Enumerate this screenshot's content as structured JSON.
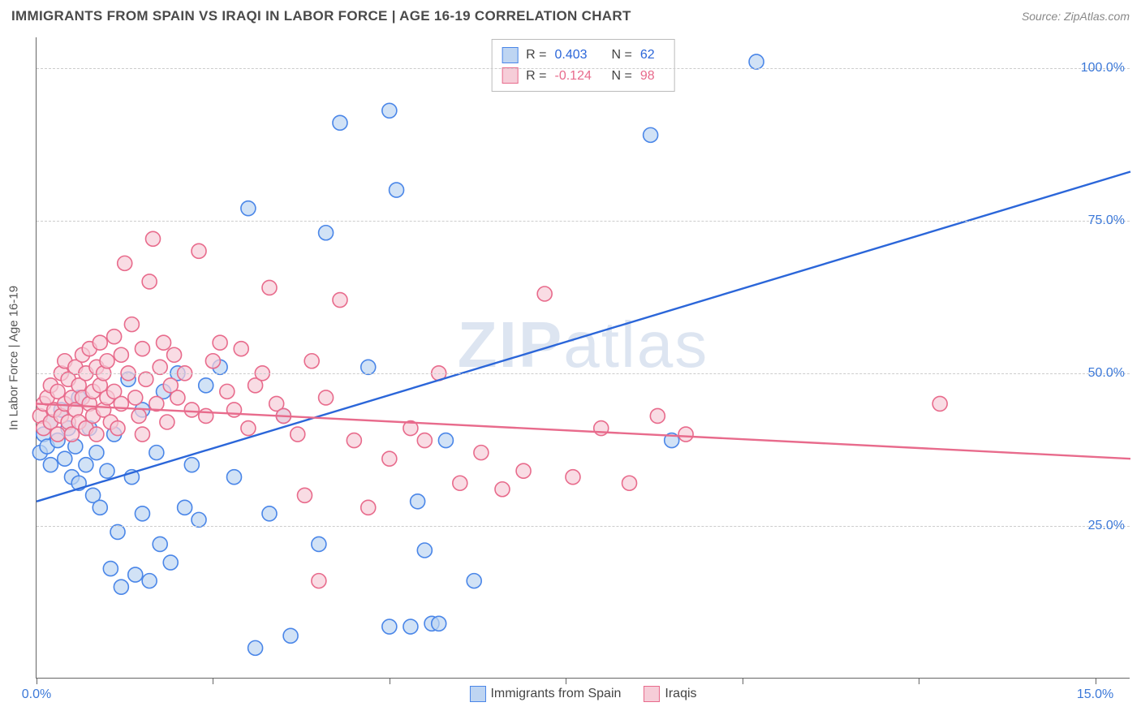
{
  "header": {
    "title": "IMMIGRANTS FROM SPAIN VS IRAQI IN LABOR FORCE | AGE 16-19 CORRELATION CHART",
    "source": "Source: ZipAtlas.com"
  },
  "watermark": {
    "bold": "ZIP",
    "rest": "atlas"
  },
  "chart": {
    "type": "scatter",
    "ylabel": "In Labor Force | Age 16-19",
    "xlim": [
      0,
      15.5
    ],
    "ylim": [
      0,
      105
    ],
    "xticks": [
      0,
      2.5,
      5,
      7.5,
      10,
      12.5,
      15
    ],
    "xtick_labels": {
      "0": "0.0%",
      "15": "15.0%"
    },
    "yticks": [
      25,
      50,
      75,
      100
    ],
    "ytick_labels": [
      "25.0%",
      "50.0%",
      "75.0%",
      "100.0%"
    ],
    "grid_color": "#cccccc",
    "axis_color": "#666666",
    "background_color": "#ffffff",
    "marker_radius": 9,
    "marker_stroke_width": 1.6,
    "line_width": 2.4,
    "label_fontsize": 15,
    "tick_fontsize": 16,
    "tick_color": "#3b78d8",
    "series": [
      {
        "name": "Immigrants from Spain",
        "fill": "#bed5f2",
        "stroke": "#4a86e8",
        "line_color": "#2b66d9",
        "R": "0.403",
        "N": "62",
        "trend": {
          "x1": 0,
          "y1": 29,
          "x2": 15.5,
          "y2": 83
        },
        "points": [
          [
            0.05,
            37
          ],
          [
            0.1,
            40
          ],
          [
            0.15,
            38
          ],
          [
            0.2,
            42
          ],
          [
            0.2,
            35
          ],
          [
            0.3,
            39
          ],
          [
            0.35,
            44
          ],
          [
            0.4,
            36
          ],
          [
            0.45,
            41
          ],
          [
            0.5,
            33
          ],
          [
            0.55,
            38
          ],
          [
            0.6,
            32
          ],
          [
            0.6,
            46
          ],
          [
            0.7,
            35
          ],
          [
            0.75,
            41
          ],
          [
            0.8,
            30
          ],
          [
            0.85,
            37
          ],
          [
            0.9,
            28
          ],
          [
            1.0,
            34
          ],
          [
            1.05,
            18
          ],
          [
            1.1,
            40
          ],
          [
            1.15,
            24
          ],
          [
            1.2,
            15
          ],
          [
            1.3,
            49
          ],
          [
            1.35,
            33
          ],
          [
            1.4,
            17
          ],
          [
            1.5,
            27
          ],
          [
            1.5,
            44
          ],
          [
            1.6,
            16
          ],
          [
            1.7,
            37
          ],
          [
            1.75,
            22
          ],
          [
            1.8,
            47
          ],
          [
            1.9,
            19
          ],
          [
            2.0,
            50
          ],
          [
            2.1,
            28
          ],
          [
            2.2,
            35
          ],
          [
            2.3,
            26
          ],
          [
            2.4,
            48
          ],
          [
            2.6,
            51
          ],
          [
            2.8,
            33
          ],
          [
            3.0,
            77
          ],
          [
            3.1,
            5
          ],
          [
            3.3,
            27
          ],
          [
            3.5,
            43
          ],
          [
            3.6,
            7
          ],
          [
            4.0,
            22
          ],
          [
            4.1,
            73
          ],
          [
            4.3,
            91
          ],
          [
            4.7,
            51
          ],
          [
            5.0,
            93
          ],
          [
            5.0,
            8.5
          ],
          [
            5.1,
            80
          ],
          [
            5.3,
            8.5
          ],
          [
            5.4,
            29
          ],
          [
            5.5,
            21
          ],
          [
            5.6,
            9
          ],
          [
            5.7,
            9
          ],
          [
            5.8,
            39
          ],
          [
            6.2,
            16
          ],
          [
            8.7,
            89
          ],
          [
            9.0,
            39
          ],
          [
            10.2,
            101
          ]
        ]
      },
      {
        "name": "Iraqis",
        "fill": "#f6cdd8",
        "stroke": "#e86b8c",
        "line_color": "#e86b8c",
        "R": "-0.124",
        "N": "98",
        "trend": {
          "x1": 0,
          "y1": 45,
          "x2": 15.5,
          "y2": 36
        },
        "points": [
          [
            0.05,
            43
          ],
          [
            0.1,
            45
          ],
          [
            0.1,
            41
          ],
          [
            0.15,
            46
          ],
          [
            0.2,
            42
          ],
          [
            0.2,
            48
          ],
          [
            0.25,
            44
          ],
          [
            0.3,
            40
          ],
          [
            0.3,
            47
          ],
          [
            0.35,
            43
          ],
          [
            0.35,
            50
          ],
          [
            0.4,
            45
          ],
          [
            0.4,
            52
          ],
          [
            0.45,
            42
          ],
          [
            0.45,
            49
          ],
          [
            0.5,
            46
          ],
          [
            0.5,
            40
          ],
          [
            0.55,
            51
          ],
          [
            0.55,
            44
          ],
          [
            0.6,
            48
          ],
          [
            0.6,
            42
          ],
          [
            0.65,
            53
          ],
          [
            0.65,
            46
          ],
          [
            0.7,
            41
          ],
          [
            0.7,
            50
          ],
          [
            0.75,
            45
          ],
          [
            0.75,
            54
          ],
          [
            0.8,
            47
          ],
          [
            0.8,
            43
          ],
          [
            0.85,
            51
          ],
          [
            0.85,
            40
          ],
          [
            0.9,
            48
          ],
          [
            0.9,
            55
          ],
          [
            0.95,
            44
          ],
          [
            0.95,
            50
          ],
          [
            1.0,
            46
          ],
          [
            1.0,
            52
          ],
          [
            1.05,
            42
          ],
          [
            1.1,
            56
          ],
          [
            1.1,
            47
          ],
          [
            1.15,
            41
          ],
          [
            1.2,
            53
          ],
          [
            1.2,
            45
          ],
          [
            1.25,
            68
          ],
          [
            1.3,
            50
          ],
          [
            1.35,
            58
          ],
          [
            1.4,
            46
          ],
          [
            1.45,
            43
          ],
          [
            1.5,
            54
          ],
          [
            1.5,
            40
          ],
          [
            1.55,
            49
          ],
          [
            1.6,
            65
          ],
          [
            1.65,
            72
          ],
          [
            1.7,
            45
          ],
          [
            1.75,
            51
          ],
          [
            1.8,
            55
          ],
          [
            1.85,
            42
          ],
          [
            1.9,
            48
          ],
          [
            1.95,
            53
          ],
          [
            2.0,
            46
          ],
          [
            2.1,
            50
          ],
          [
            2.2,
            44
          ],
          [
            2.3,
            70
          ],
          [
            2.4,
            43
          ],
          [
            2.5,
            52
          ],
          [
            2.6,
            55
          ],
          [
            2.7,
            47
          ],
          [
            2.8,
            44
          ],
          [
            2.9,
            54
          ],
          [
            3.0,
            41
          ],
          [
            3.1,
            48
          ],
          [
            3.2,
            50
          ],
          [
            3.3,
            64
          ],
          [
            3.4,
            45
          ],
          [
            3.5,
            43
          ],
          [
            3.7,
            40
          ],
          [
            3.8,
            30
          ],
          [
            3.9,
            52
          ],
          [
            4.0,
            16
          ],
          [
            4.1,
            46
          ],
          [
            4.3,
            62
          ],
          [
            4.5,
            39
          ],
          [
            4.7,
            28
          ],
          [
            5.0,
            36
          ],
          [
            5.3,
            41
          ],
          [
            5.5,
            39
          ],
          [
            5.7,
            50
          ],
          [
            6.0,
            32
          ],
          [
            6.3,
            37
          ],
          [
            6.6,
            31
          ],
          [
            6.9,
            34
          ],
          [
            7.2,
            63
          ],
          [
            7.6,
            33
          ],
          [
            8.0,
            41
          ],
          [
            8.4,
            32
          ],
          [
            8.8,
            43
          ],
          [
            9.2,
            40
          ],
          [
            12.8,
            45
          ]
        ]
      }
    ],
    "legend_bottom": [
      {
        "label": "Immigrants from Spain",
        "fill": "#bed5f2",
        "stroke": "#4a86e8"
      },
      {
        "label": "Iraqis",
        "fill": "#f6cdd8",
        "stroke": "#e86b8c"
      }
    ]
  }
}
